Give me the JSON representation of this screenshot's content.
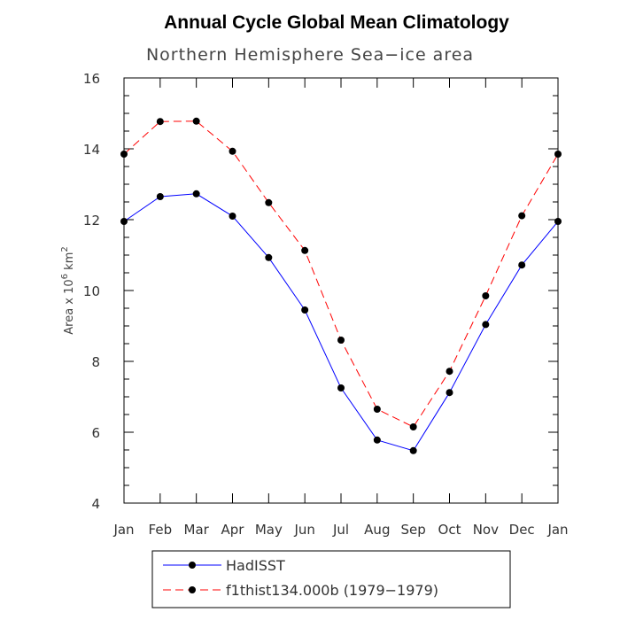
{
  "chart_data": {
    "type": "line",
    "title": "Annual Cycle Global Mean Climatology",
    "subtitle": "Northern Hemisphere Sea−ice area",
    "ylabel": {
      "prefix": "Area x 10",
      "exp1": "6",
      "mid": " km",
      "exp2": "2"
    },
    "categories": [
      "Jan",
      "Feb",
      "Mar",
      "Apr",
      "May",
      "Jun",
      "Jul",
      "Aug",
      "Sep",
      "Oct",
      "Nov",
      "Dec",
      "Jan"
    ],
    "ylim": [
      4,
      16
    ],
    "yticks": [
      "4",
      "6",
      "8",
      "10",
      "12",
      "14",
      "16"
    ],
    "grid": false,
    "legend_position": "bottom",
    "series": [
      {
        "name": "HadISST",
        "color": "#0000ff",
        "dash": "solid",
        "values": [
          11.95,
          12.65,
          12.73,
          12.1,
          10.93,
          9.45,
          7.25,
          5.78,
          5.48,
          7.12,
          9.04,
          10.72,
          11.95
        ]
      },
      {
        "name": "f1thist134.000b (1979−1979)",
        "color": "#ff0000",
        "dash": "dashed",
        "values": [
          13.85,
          14.77,
          14.78,
          13.93,
          12.48,
          11.13,
          8.6,
          6.65,
          6.15,
          7.72,
          9.85,
          12.11,
          13.85
        ]
      }
    ]
  }
}
